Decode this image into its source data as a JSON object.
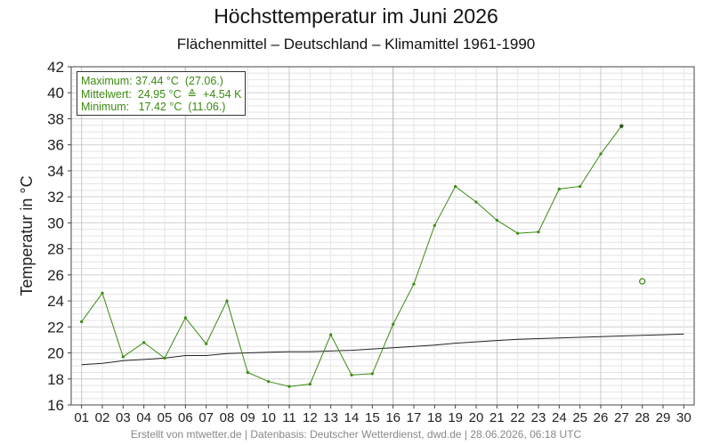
{
  "title": "Höchsttemperatur im Juni 2026",
  "subtitle": "Flächenmittel – Deutschland – Klimamittel 1961-1990",
  "footer": "Erstellt von mtwetter.de | Datenbasis: Deutscher Wetterdienst, dwd.de | 28.06.2026, 06:18 UTC",
  "stats": {
    "maximum": "Maximum: 37.44 °C  (27.06.)",
    "mittelwert": "Mittelwert:  24.95 °C  ≙  +4.54 K",
    "minimum": "Minimum:   17.42 °C  (11.06.)"
  },
  "colors": {
    "series": "#3a8a10",
    "clim": "#222222",
    "grid_major": "#bbbbbb",
    "grid_minor": "#e4e4e4"
  },
  "chart_data": {
    "type": "line",
    "title": "Höchsttemperatur im Juni 2026",
    "ylabel": "Temperatur in °C",
    "xlabel": "",
    "ylim": [
      16,
      42
    ],
    "xlim": [
      0.5,
      30.5
    ],
    "grid": true,
    "legend_placement": "top-left",
    "x_tick_labels": [
      "01",
      "02",
      "03",
      "04",
      "05",
      "06",
      "07",
      "08",
      "09",
      "10",
      "11",
      "12",
      "13",
      "14",
      "15",
      "16",
      "17",
      "18",
      "19",
      "20",
      "21",
      "22",
      "23",
      "24",
      "25",
      "26",
      "27",
      "28",
      "29",
      "30"
    ],
    "y_ticks": [
      16,
      18,
      20,
      22,
      24,
      26,
      28,
      30,
      32,
      34,
      36,
      38,
      40,
      42
    ],
    "series": [
      {
        "x": [
          1,
          2,
          3,
          4,
          5,
          6,
          7,
          8,
          9,
          10,
          11,
          12,
          13,
          14,
          15,
          16,
          17,
          18,
          19,
          20,
          21,
          22,
          23,
          24,
          25,
          26,
          27
        ],
        "values": [
          22.4,
          24.6,
          19.7,
          20.8,
          19.6,
          22.7,
          20.7,
          24.0,
          18.5,
          17.8,
          17.42,
          17.6,
          21.4,
          18.3,
          18.4,
          22.2,
          25.3,
          29.8,
          32.8,
          31.6,
          30.2,
          29.2,
          29.3,
          32.6,
          32.8,
          35.3,
          37.44
        ]
      },
      {
        "x": [
          1,
          2,
          3,
          4,
          5,
          6,
          7,
          8,
          9,
          10,
          11,
          12,
          13,
          14,
          15,
          16,
          17,
          18,
          19,
          20,
          21,
          22,
          23,
          24,
          25,
          26,
          27,
          28,
          29,
          30
        ],
        "values": [
          19.1,
          19.2,
          19.4,
          19.5,
          19.6,
          19.8,
          19.8,
          19.95,
          20.0,
          20.05,
          20.1,
          20.1,
          20.15,
          20.2,
          20.3,
          20.4,
          20.5,
          20.6,
          20.75,
          20.85,
          20.95,
          21.05,
          21.1,
          21.15,
          21.2,
          21.25,
          21.3,
          21.35,
          21.4,
          21.45
        ]
      },
      {
        "x": [
          28
        ],
        "values": [
          25.5
        ]
      }
    ]
  }
}
